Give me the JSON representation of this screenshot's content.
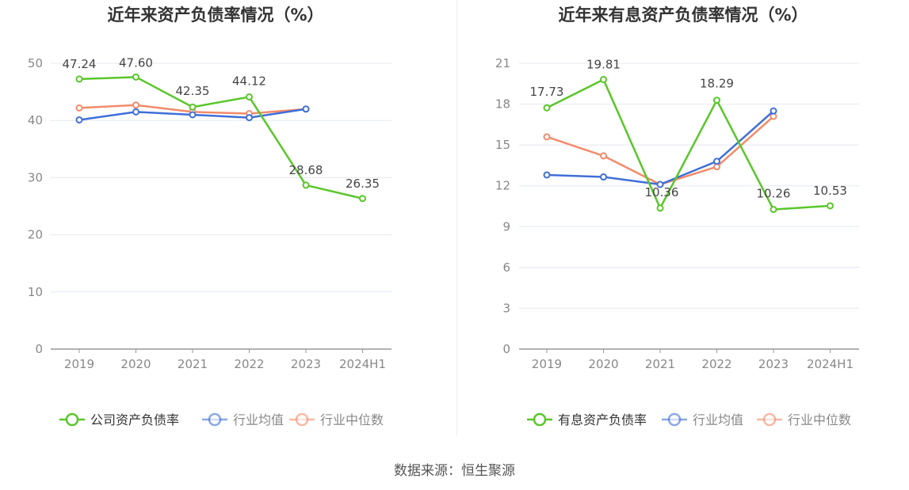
{
  "charts": [
    {
      "title": "近年来资产负债率情况（%）",
      "chart_data": {
        "type": "line",
        "categories": [
          "2019",
          "2020",
          "2021",
          "2022",
          "2023",
          "2024H1"
        ],
        "ylim": [
          0,
          50
        ],
        "yticks": [
          0,
          10,
          20,
          30,
          40,
          50
        ],
        "grid": true,
        "legend_position": "bottom",
        "series": [
          {
            "name": "公司资产负债率",
            "values": [
              47.24,
              47.6,
              42.35,
              44.12,
              28.68,
              26.35
            ],
            "labels": [
              "47.24",
              "47.60",
              "42.35",
              "44.12",
              "28.68",
              "26.35"
            ],
            "color": "#5ac62a"
          },
          {
            "name": "行业均值",
            "values": [
              40.1,
              41.5,
              41.0,
              40.5,
              42.0,
              null
            ],
            "color": "#3f6fd8"
          },
          {
            "name": "行业中位数",
            "values": [
              42.2,
              42.7,
              41.5,
              41.2,
              42.0,
              null
            ],
            "color": "#f28b6b"
          }
        ]
      }
    },
    {
      "title": "近年来有息资产负债率情况（%）",
      "chart_data": {
        "type": "line",
        "categories": [
          "2019",
          "2020",
          "2021",
          "2022",
          "2023",
          "2024H1"
        ],
        "ylim": [
          0,
          21
        ],
        "yticks": [
          0,
          3,
          6,
          9,
          12,
          15,
          18,
          21
        ],
        "grid": true,
        "legend_position": "bottom",
        "series": [
          {
            "name": "有息资产负债率",
            "values": [
              17.73,
              19.81,
              10.36,
              18.29,
              10.26,
              10.53
            ],
            "labels": [
              "17.73",
              "19.81",
              "10.36",
              "18.29",
              "10.26",
              "10.53"
            ],
            "color": "#5ac62a"
          },
          {
            "name": "行业均值",
            "values": [
              12.8,
              12.65,
              12.1,
              13.8,
              17.5,
              null
            ],
            "color": "#3f6fd8"
          },
          {
            "name": "行业中位数",
            "values": [
              15.6,
              14.2,
              12.1,
              13.4,
              17.1,
              null
            ],
            "color": "#f28b6b"
          }
        ]
      }
    }
  ],
  "source": "数据来源：恒生聚源"
}
